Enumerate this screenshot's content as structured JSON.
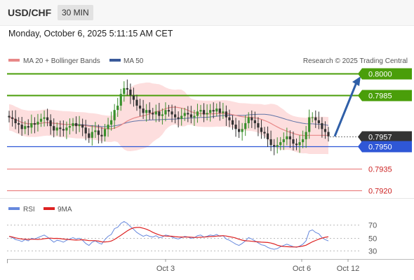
{
  "header": {
    "symbol": "USD/CHF",
    "timeframe": "30 MIN",
    "datetime": "Monday, October 6, 2025 5:11:15 AM CET"
  },
  "legend": {
    "ma20": "MA 20 + Bollinger Bands",
    "ma50": "MA 50",
    "credit": "Research © 2025 Trading Central",
    "rsi": "RSI",
    "rsi_ma": "9MA"
  },
  "colors": {
    "green": "#4a9e0a",
    "blue": "#2f57d6",
    "red": "#e87070",
    "bull": "#3a8f2c",
    "bear": "#333333",
    "ma20": "#e88888",
    "ma50": "#3a5a9a",
    "band": "#fdd8d8",
    "arrow": "#2f5fa8",
    "price_tag": "#333333",
    "rsi": "#6688dd",
    "rsi_ma": "#dd2222"
  },
  "chart_data": {
    "type": "candlestick",
    "x_ticks": [
      "Oct 3",
      "Oct 6",
      "Oct 12"
    ],
    "y_range": [
      0.7913,
      0.8006
    ],
    "levels": [
      {
        "value": 0.8,
        "label": "0.8000",
        "kind": "resistance"
      },
      {
        "value": 0.7985,
        "label": "0.7985",
        "kind": "resistance"
      },
      {
        "value": 0.7957,
        "label": "0.7957",
        "kind": "last_price"
      },
      {
        "value": 0.795,
        "label": "0.7950",
        "kind": "pivot"
      },
      {
        "value": 0.7935,
        "label": "0.7935",
        "kind": "support"
      },
      {
        "value": 0.792,
        "label": "0.7920",
        "kind": "support"
      }
    ],
    "closes": [
      0.797,
      0.7969,
      0.7966,
      0.7965,
      0.7962,
      0.7964,
      0.7963,
      0.7966,
      0.7965,
      0.7967,
      0.7969,
      0.797,
      0.7968,
      0.7964,
      0.7961,
      0.7963,
      0.7962,
      0.7961,
      0.7963,
      0.7964,
      0.7966,
      0.7964,
      0.7965,
      0.7963,
      0.7959,
      0.7956,
      0.796,
      0.7961,
      0.7958,
      0.7957,
      0.7962,
      0.7965,
      0.7968,
      0.7975,
      0.7978,
      0.7986,
      0.799,
      0.7989,
      0.7985,
      0.7982,
      0.7978,
      0.7976,
      0.7973,
      0.7975,
      0.7973,
      0.7972,
      0.7974,
      0.7971,
      0.7972,
      0.7975,
      0.7974,
      0.7972,
      0.797,
      0.7969,
      0.7971,
      0.7973,
      0.7972,
      0.797,
      0.7971,
      0.7974,
      0.7975,
      0.7972,
      0.7973,
      0.7975,
      0.7974,
      0.7976,
      0.7973,
      0.7974,
      0.797,
      0.7968,
      0.7965,
      0.7962,
      0.796,
      0.7962,
      0.7966,
      0.797,
      0.7968,
      0.7966,
      0.7963,
      0.796,
      0.7959,
      0.7955,
      0.7951,
      0.795,
      0.7951,
      0.7953,
      0.7955,
      0.7957,
      0.7955,
      0.7952,
      0.7951,
      0.7953,
      0.7955,
      0.796,
      0.797,
      0.797,
      0.7968,
      0.7966,
      0.7962,
      0.796,
      0.7957
    ],
    "rsi": {
      "range": [
        20,
        80
      ],
      "ticks": [
        70,
        50,
        30
      ],
      "values": [
        52,
        50,
        47,
        46,
        44,
        47,
        45,
        49,
        48,
        50,
        52,
        54,
        51,
        47,
        43,
        46,
        45,
        43,
        46,
        48,
        50,
        48,
        49,
        46,
        41,
        38,
        43,
        45,
        42,
        40,
        47,
        52,
        55,
        64,
        66,
        72,
        75,
        72,
        67,
        63,
        58,
        55,
        52,
        54,
        52,
        51,
        53,
        50,
        51,
        54,
        53,
        51,
        49,
        48,
        50,
        52,
        51,
        49,
        50,
        53,
        54,
        51,
        52,
        54,
        53,
        55,
        52,
        53,
        48,
        46,
        43,
        40,
        38,
        41,
        45,
        50,
        48,
        45,
        42,
        39,
        38,
        35,
        33,
        32,
        33,
        36,
        38,
        40,
        38,
        36,
        35,
        37,
        40,
        45,
        60,
        62,
        58,
        56,
        50,
        47,
        45
      ]
    }
  }
}
